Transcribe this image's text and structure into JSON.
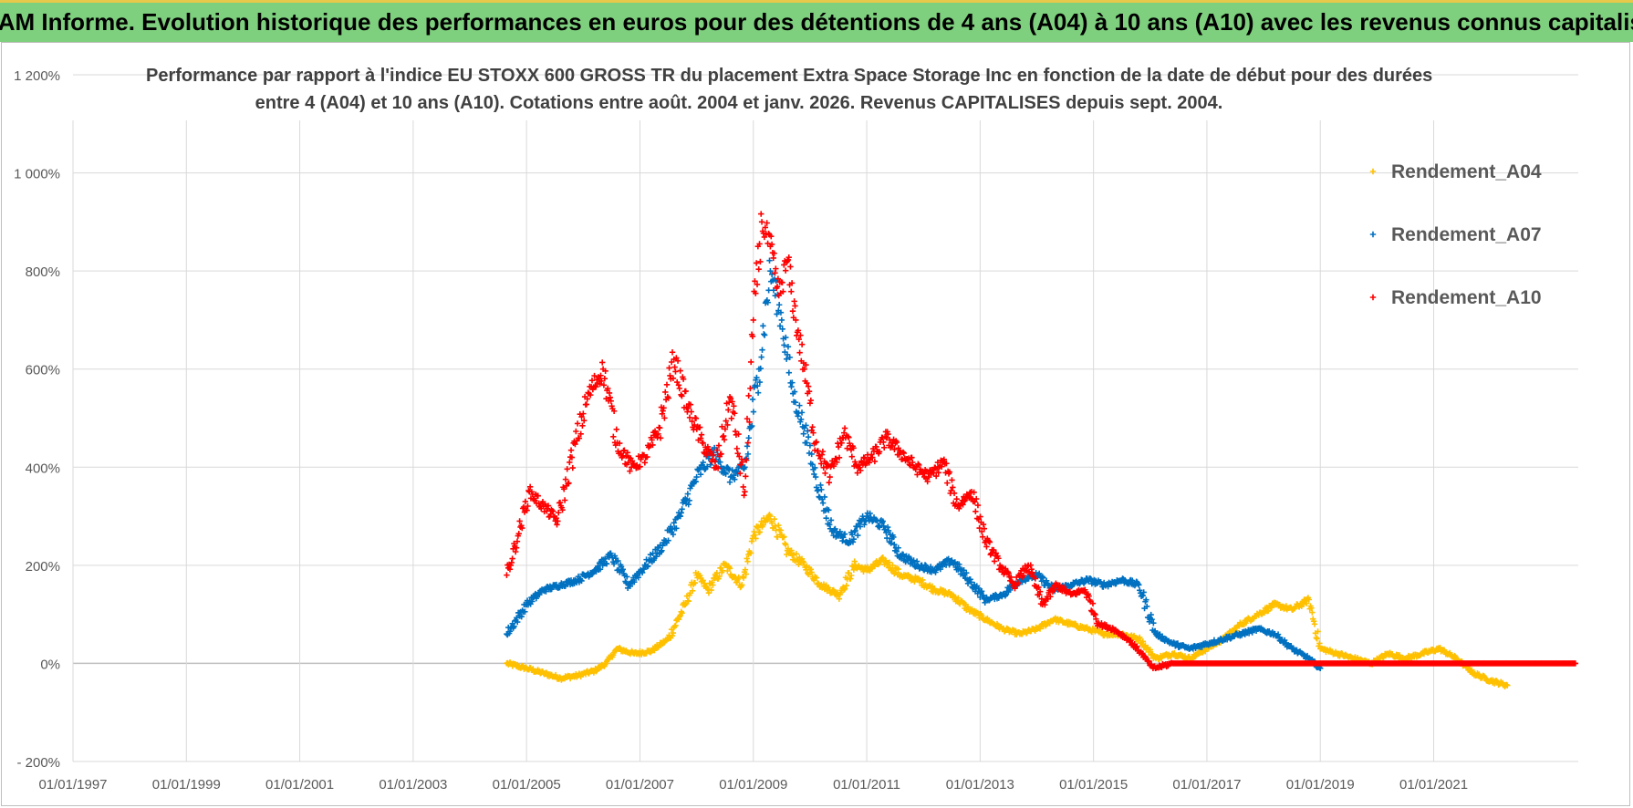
{
  "header": {
    "banner": "ADAM Informe. Evolution historique des performances en euros pour des détentions de 4 ans (A04) à 10 ans (A10) avec les revenus connus capitalisés"
  },
  "colors": {
    "banner_bg": "#7ed07e",
    "a04": "#ffc000",
    "a07": "#0070c0",
    "a10": "#ff0000",
    "grid": "#d9d9d9"
  },
  "chart_data": {
    "type": "scatter",
    "title_line1": "Performance par rapport à l'indice EU STOXX 600 GROSS TR  du placement Extra Space Storage Inc en fonction de la date de début pour des durées",
    "title_line2": "entre 4 (A04) et 10 ans (A10). Cotations entre août. 2004 et janv. 2026. Revenus CAPITALISES depuis sept. 2004.",
    "xlabel": "",
    "ylabel": "",
    "xlim": [
      1997.0,
      2023.55
    ],
    "ylim": [
      -200,
      1200
    ],
    "y_ticks": [
      -200,
      0,
      200,
      400,
      600,
      800,
      1000,
      1200
    ],
    "y_tick_labels": [
      "- 200%",
      "0%",
      "200%",
      "400%",
      "600%",
      "800%",
      "1 000%",
      "1 200%"
    ],
    "x_ticks": [
      1997,
      1999,
      2001,
      2003,
      2005,
      2007,
      2009,
      2011,
      2013,
      2015,
      2017,
      2019,
      2021
    ],
    "x_tick_labels": [
      "01/01/1997",
      "01/01/1999",
      "01/01/2001",
      "01/01/2003",
      "01/01/2005",
      "01/01/2007",
      "01/01/2009",
      "01/01/2011",
      "01/01/2013",
      "01/01/2015",
      "01/01/2017",
      "01/01/2019",
      "01/01/2021"
    ],
    "legend_position": "top-right",
    "series": [
      {
        "name": "Rendement_A04",
        "color": "#ffc000",
        "x": [
          2004.65,
          2005.0,
          2005.3,
          2005.6,
          2005.9,
          2006.2,
          2006.4,
          2006.6,
          2006.9,
          2007.2,
          2007.5,
          2007.8,
          2008.0,
          2008.2,
          2008.5,
          2008.8,
          2009.0,
          2009.3,
          2009.6,
          2009.9,
          2010.2,
          2010.5,
          2010.8,
          2011.0,
          2011.3,
          2011.6,
          2011.9,
          2012.2,
          2012.5,
          2012.8,
          2013.1,
          2013.4,
          2013.7,
          2014.0,
          2014.3,
          2014.6,
          2014.9,
          2015.2,
          2015.5,
          2015.8,
          2016.1,
          2016.4,
          2016.7,
          2017.0,
          2017.3,
          2017.6,
          2017.9,
          2018.2,
          2018.5,
          2018.8,
          2019.0,
          2019.3,
          2019.6,
          2019.9,
          2020.2,
          2020.5,
          2020.8,
          2021.1,
          2021.4,
          2021.7,
          2022.0,
          2022.3
        ],
        "y": [
          0,
          -10,
          -20,
          -30,
          -25,
          -15,
          0,
          30,
          20,
          25,
          50,
          120,
          180,
          150,
          200,
          160,
          260,
          300,
          230,
          200,
          160,
          140,
          200,
          190,
          210,
          180,
          170,
          150,
          140,
          110,
          90,
          70,
          60,
          70,
          90,
          80,
          70,
          60,
          60,
          50,
          10,
          20,
          10,
          30,
          50,
          80,
          100,
          120,
          110,
          130,
          30,
          20,
          10,
          0,
          20,
          10,
          20,
          30,
          10,
          -20,
          -35,
          -45
        ]
      },
      {
        "name": "Rendement_A07",
        "color": "#0070c0",
        "x": [
          2004.65,
          2005.0,
          2005.3,
          2005.6,
          2005.9,
          2006.2,
          2006.5,
          2006.8,
          2007.1,
          2007.4,
          2007.7,
          2008.0,
          2008.3,
          2008.6,
          2008.85,
          2009.1,
          2009.3,
          2009.5,
          2009.7,
          2009.9,
          2010.1,
          2010.4,
          2010.7,
          2011.0,
          2011.3,
          2011.6,
          2011.9,
          2012.2,
          2012.5,
          2012.8,
          2013.1,
          2013.4,
          2013.7,
          2014.0,
          2014.3,
          2014.6,
          2014.9,
          2015.2,
          2015.5,
          2015.8,
          2016.1,
          2016.4,
          2016.7,
          2017.0,
          2017.3,
          2017.6,
          2017.9,
          2018.2,
          2018.5,
          2018.8,
          2019.0
        ],
        "y": [
          60,
          120,
          150,
          160,
          170,
          190,
          220,
          160,
          200,
          240,
          300,
          380,
          430,
          380,
          400,
          600,
          800,
          700,
          550,
          480,
          380,
          270,
          250,
          300,
          280,
          220,
          200,
          190,
          210,
          170,
          130,
          140,
          170,
          180,
          150,
          160,
          170,
          160,
          170,
          160,
          60,
          40,
          30,
          40,
          50,
          60,
          70,
          60,
          30,
          10,
          -10
        ]
      },
      {
        "name": "Rendement_A10",
        "color": "#ff0000",
        "x": [
          2004.65,
          2004.85,
          2005.05,
          2005.3,
          2005.55,
          2005.8,
          2006.1,
          2006.35,
          2006.6,
          2006.85,
          2007.1,
          2007.35,
          2007.6,
          2007.85,
          2008.1,
          2008.35,
          2008.6,
          2008.85,
          2009.0,
          2009.15,
          2009.3,
          2009.45,
          2009.6,
          2009.75,
          2009.9,
          2010.1,
          2010.35,
          2010.6,
          2010.85,
          2011.1,
          2011.35,
          2011.6,
          2011.85,
          2012.1,
          2012.35,
          2012.6,
          2012.85,
          2013.1,
          2013.35,
          2013.6,
          2013.85,
          2014.1,
          2014.35,
          2014.6,
          2014.85,
          2015.1,
          2015.35,
          2015.6,
          2015.85,
          2016.05,
          2016.4,
          2017.0,
          2018.0,
          2019.0,
          2020.0,
          2021.0,
          2022.0,
          2023.0,
          2023.5
        ],
        "y": [
          180,
          260,
          350,
          320,
          290,
          420,
          550,
          600,
          450,
          400,
          420,
          480,
          620,
          520,
          450,
          400,
          540,
          350,
          700,
          900,
          850,
          750,
          820,
          700,
          600,
          450,
          380,
          470,
          400,
          420,
          460,
          430,
          400,
          380,
          410,
          320,
          350,
          250,
          200,
          160,
          200,
          120,
          160,
          140,
          150,
          80,
          70,
          50,
          20,
          -10,
          0,
          0,
          0,
          0,
          0,
          0,
          0,
          0,
          0
        ]
      }
    ]
  }
}
